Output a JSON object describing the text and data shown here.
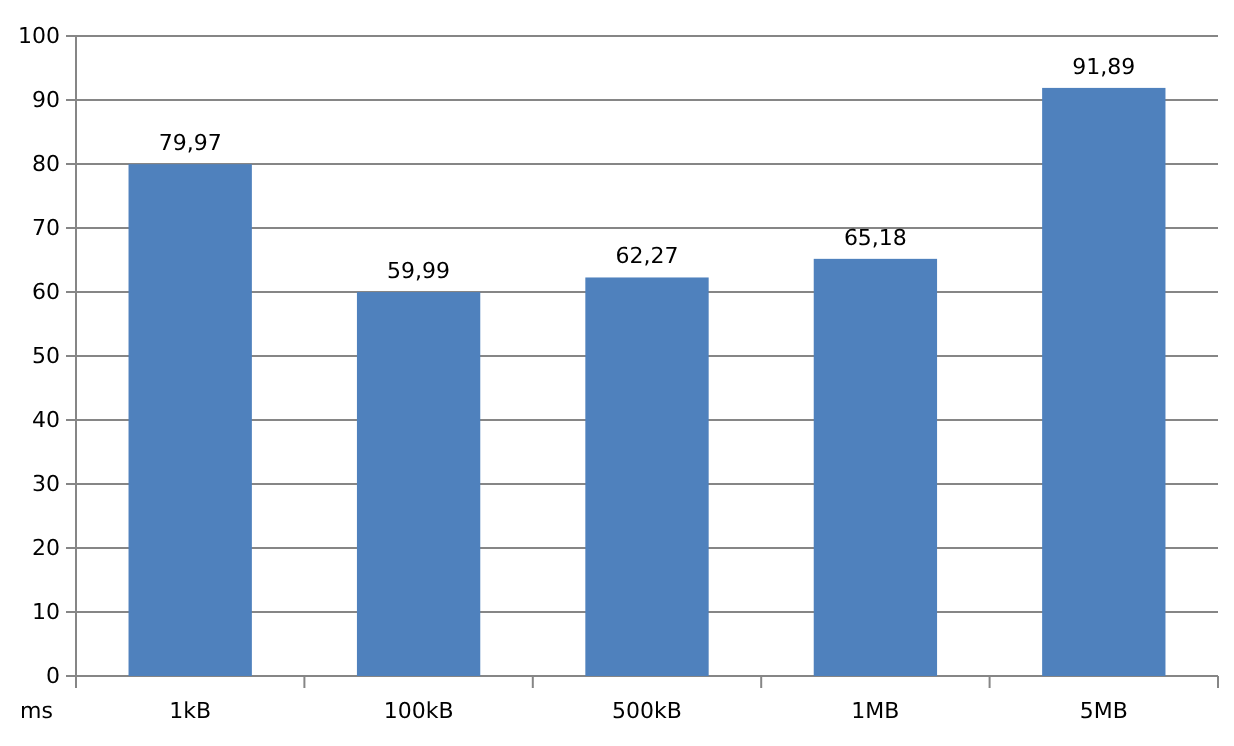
{
  "chart_data": {
    "type": "bar",
    "ylabel": "ms",
    "categories": [
      "1kB",
      "100kB",
      "500kB",
      "1MB",
      "5MB"
    ],
    "values": [
      79.97,
      59.99,
      62.27,
      65.18,
      91.89
    ],
    "value_labels": [
      "79,97",
      "59,99",
      "62,27",
      "65,18",
      "91,89"
    ],
    "color": "#4f81bd",
    "ylim": [
      0,
      100
    ],
    "yticks": [
      0,
      10,
      20,
      30,
      40,
      50,
      60,
      70,
      80,
      90,
      100
    ],
    "grid": "y"
  }
}
